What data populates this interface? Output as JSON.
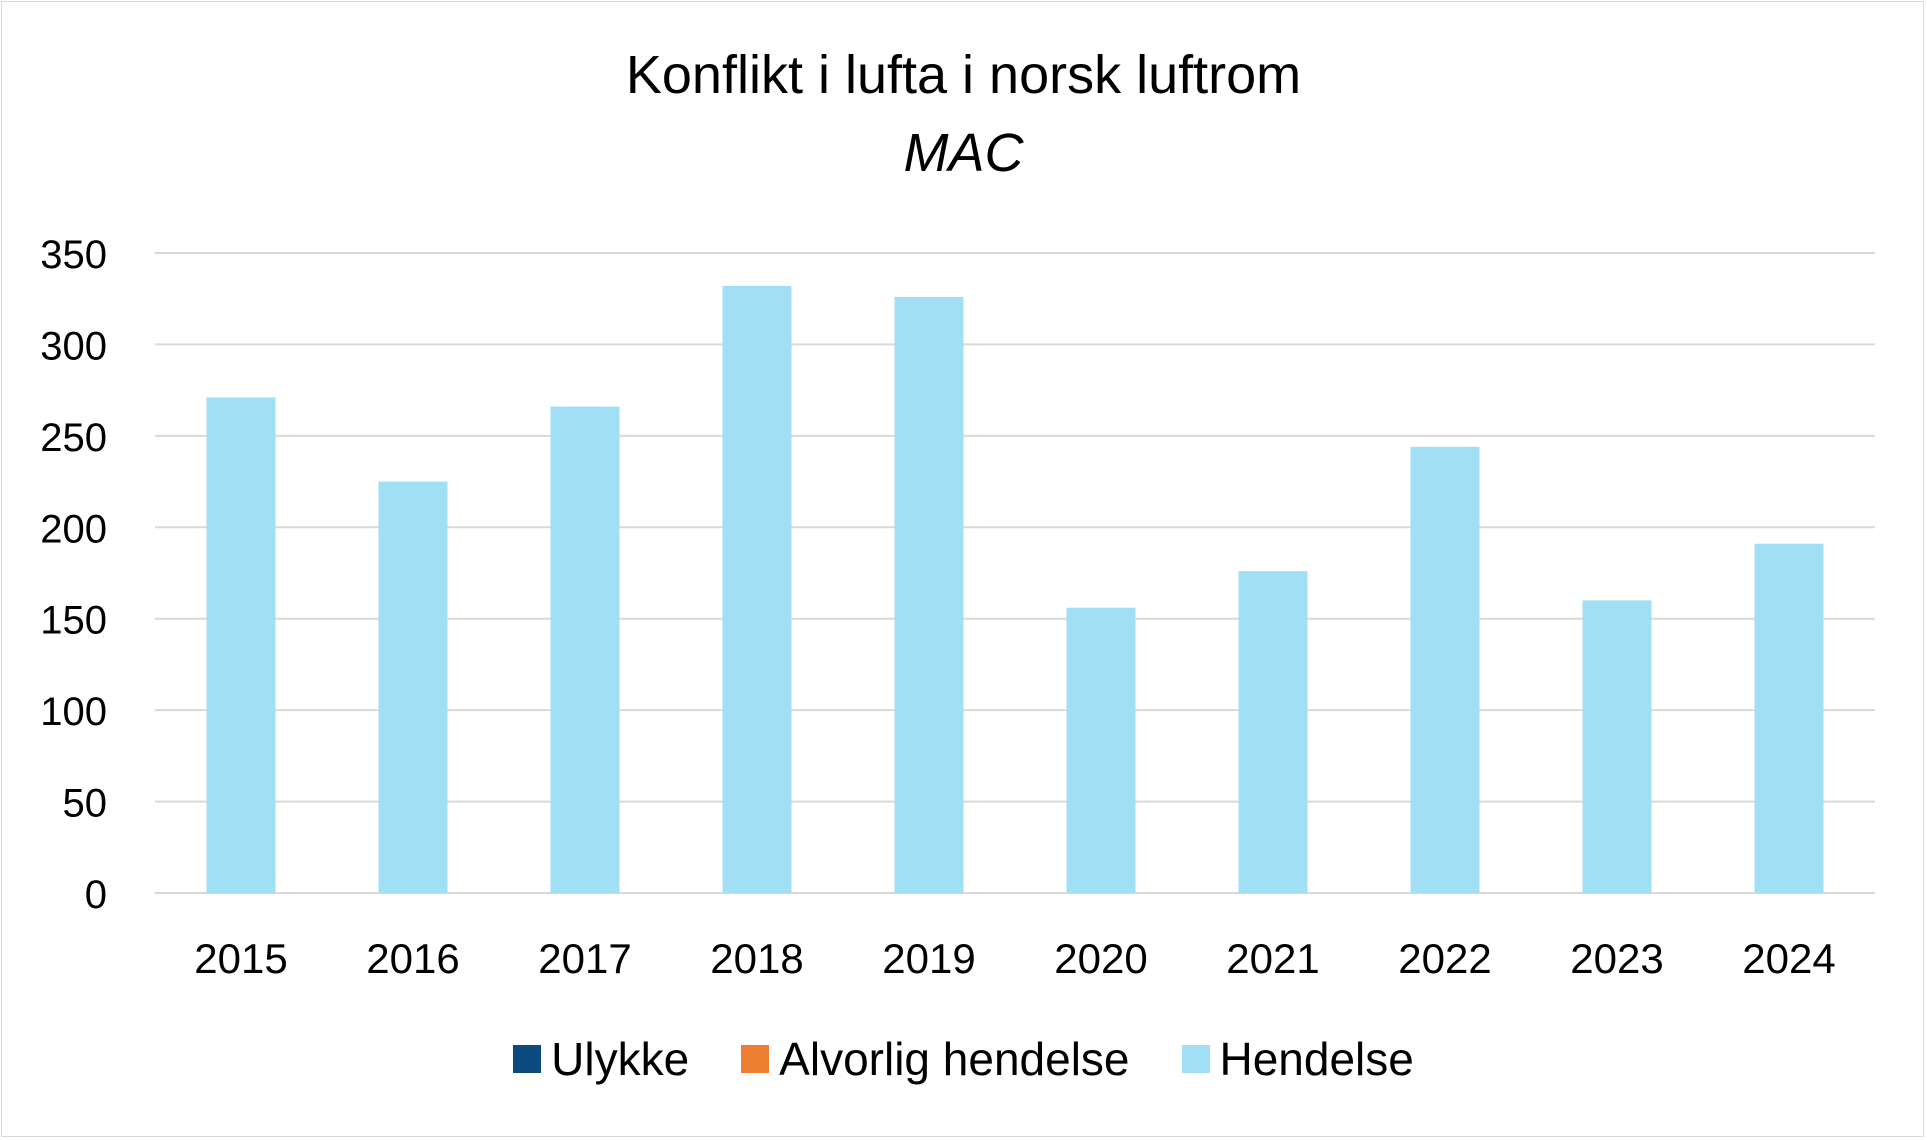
{
  "chart_data": {
    "type": "bar",
    "title": "Konflikt i lufta i norsk luftrom",
    "subtitle": "MAC",
    "categories": [
      "2015",
      "2016",
      "2017",
      "2018",
      "2019",
      "2020",
      "2021",
      "2022",
      "2023",
      "2024"
    ],
    "series": [
      {
        "name": "Ulykke",
        "color": "#0d4a80",
        "values": [
          0,
          0,
          0,
          0,
          0,
          0,
          0,
          0,
          0,
          0
        ]
      },
      {
        "name": "Alvorlig hendelse",
        "color": "#ed7d31",
        "values": [
          0,
          0,
          0,
          0,
          0,
          0,
          0,
          0,
          0,
          0
        ]
      },
      {
        "name": "Hendelse",
        "color": "#a0dff4",
        "values": [
          271,
          225,
          266,
          332,
          326,
          156,
          176,
          244,
          160,
          191
        ]
      }
    ],
    "stacked": true,
    "ylim": [
      0,
      350
    ],
    "yticks": [
      0,
      50,
      100,
      150,
      200,
      250,
      300,
      350
    ],
    "grid": true,
    "legend_position": "bottom",
    "xlabel": "",
    "ylabel": ""
  }
}
